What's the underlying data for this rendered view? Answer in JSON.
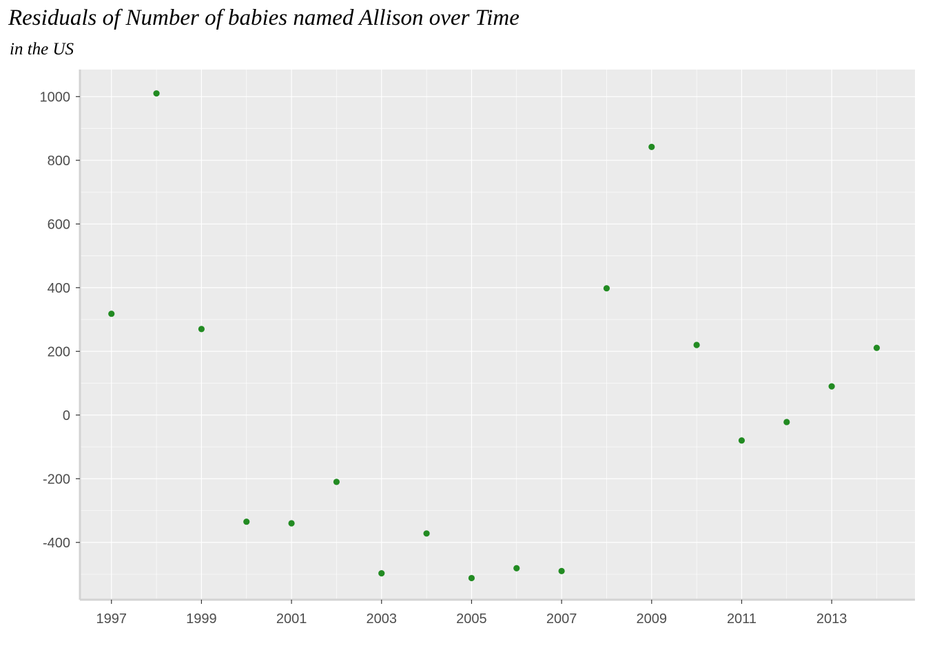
{
  "chart_data": {
    "type": "scatter",
    "title": "Residuals of Number of babies named Allison over Time",
    "subtitle": "in the US",
    "xlabel": "",
    "ylabel": "",
    "x": [
      1997,
      1998,
      1999,
      2000,
      2001,
      2002,
      2003,
      2004,
      2005,
      2006,
      2007,
      2008,
      2009,
      2010,
      2011,
      2012,
      2013,
      2014
    ],
    "y": [
      318,
      1010,
      270,
      -335,
      -340,
      -210,
      -497,
      -372,
      -512,
      -481,
      -490,
      398,
      842,
      220,
      -80,
      -22,
      90,
      211
    ],
    "xlim": [
      1996.3,
      2014.85
    ],
    "ylim": [
      -580,
      1085
    ],
    "x_ticks": [
      1997,
      1999,
      2001,
      2003,
      2005,
      2007,
      2009,
      2011,
      2013
    ],
    "y_ticks": [
      -400,
      -200,
      0,
      200,
      400,
      600,
      800,
      1000
    ],
    "grid": true,
    "point_color": "#228b22",
    "panel_background": "#ebebeb",
    "gridline_color": "#ffffff",
    "axis_line_color": "#d3d3d3"
  }
}
